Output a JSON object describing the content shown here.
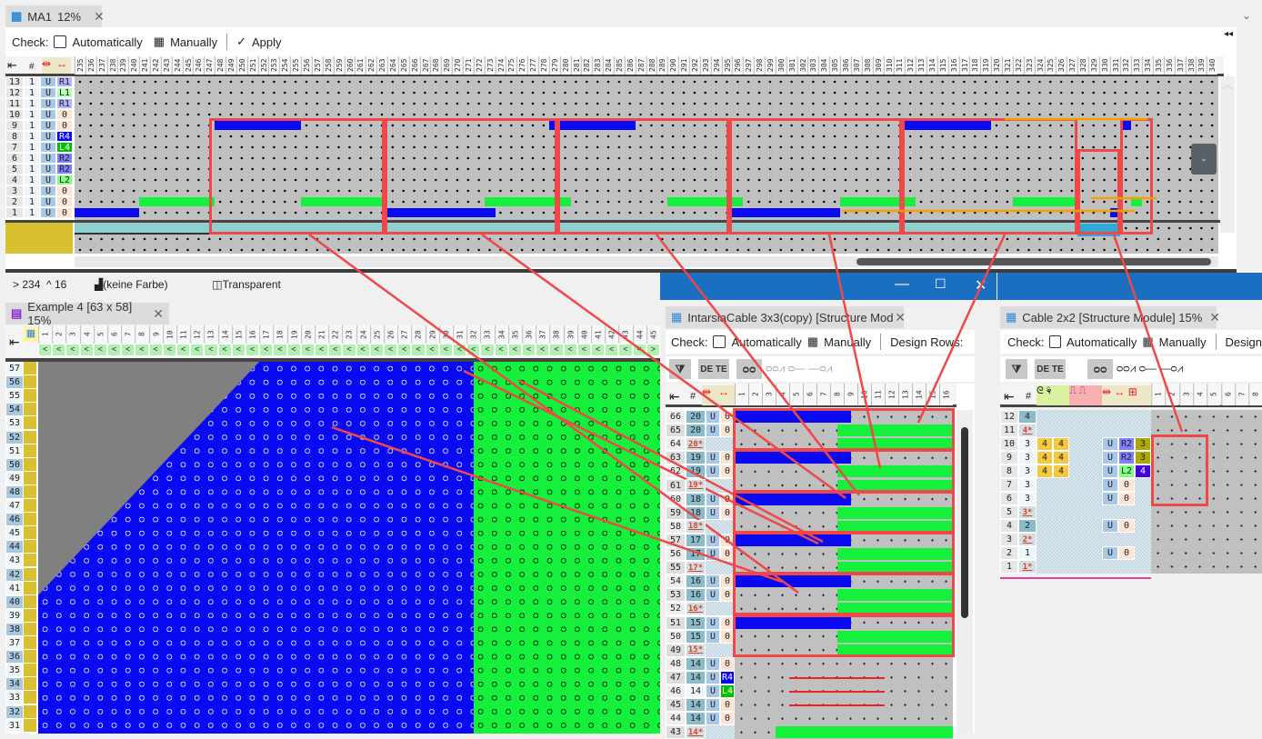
{
  "top": {
    "tab": {
      "title": "MA1",
      "zoom": "12%"
    },
    "toolbar": {
      "check_label": "Check:",
      "auto_label": "Automatically",
      "manual_label": "Manually",
      "apply_label": "Apply"
    },
    "columns": {
      "from": 235,
      "to": 340
    },
    "header_icons": [
      "collapse-left-icon",
      "#",
      "move-icon",
      "shift-icon"
    ],
    "rows": [
      [
        "13",
        "1",
        "U",
        "R1"
      ],
      [
        "12",
        "1",
        "U",
        "L1"
      ],
      [
        "11",
        "1",
        "U",
        "R1"
      ],
      [
        "10",
        "1",
        "U",
        "0"
      ],
      [
        "9",
        "1",
        "U",
        "0"
      ],
      [
        "8",
        "1",
        "U",
        "R4"
      ],
      [
        "7",
        "1",
        "U",
        "L4"
      ],
      [
        "6",
        "1",
        "U",
        "R2"
      ],
      [
        "5",
        "1",
        "U",
        "R2"
      ],
      [
        "4",
        "1",
        "U",
        "L2"
      ],
      [
        "3",
        "1",
        "U",
        "0"
      ],
      [
        "2",
        "1",
        "U",
        "0"
      ],
      [
        "1",
        "1",
        "U",
        "0"
      ]
    ],
    "status": {
      "position": "> 234  ^ 16",
      "color_label": "(keine Farbe)",
      "transparent_label": "Transparent"
    },
    "float_button": "-"
  },
  "example": {
    "tab": "Example 4 [63 x 58] 15%",
    "columns": {
      "from": 1,
      "to": 46
    },
    "direction": "<",
    "rows": {
      "from": 57,
      "to": 31
    }
  },
  "intarsia": {
    "tab": "IntarsiaCable 3x3(copy) [Structure Mod",
    "toolbar": {
      "check_label": "Check:",
      "auto_label": "Automatically",
      "manual_label": "Manually",
      "design_rows": "Design Rows:"
    },
    "buttons": [
      "DE TE"
    ],
    "columns": {
      "from": 1,
      "to": 16
    },
    "rows": [
      [
        "66",
        "20",
        "U",
        "0"
      ],
      [
        "65",
        "20",
        "U",
        "0"
      ],
      [
        "64",
        "20*",
        "",
        ""
      ],
      [
        "63",
        "19",
        "U",
        "0"
      ],
      [
        "62",
        "19",
        "U",
        "0"
      ],
      [
        "61",
        "19*",
        "",
        ""
      ],
      [
        "60",
        "18",
        "U",
        "0"
      ],
      [
        "59",
        "18",
        "U",
        "0"
      ],
      [
        "58",
        "18*",
        "",
        ""
      ],
      [
        "57",
        "17",
        "U",
        "0"
      ],
      [
        "56",
        "17",
        "U",
        "0"
      ],
      [
        "55",
        "17*",
        "",
        ""
      ],
      [
        "54",
        "16",
        "U",
        "0"
      ],
      [
        "53",
        "16",
        "U",
        "0"
      ],
      [
        "52",
        "16*",
        "",
        ""
      ],
      [
        "51",
        "15",
        "U",
        "0"
      ],
      [
        "50",
        "15",
        "U",
        "0"
      ],
      [
        "49",
        "15*",
        "",
        ""
      ],
      [
        "48",
        "14",
        "U",
        "0"
      ],
      [
        "47",
        "14",
        "U",
        "R4"
      ],
      [
        "46",
        "14",
        "U",
        "L4"
      ],
      [
        "45",
        "14",
        "U",
        "0"
      ],
      [
        "44",
        "14",
        "U",
        "0"
      ],
      [
        "43",
        "14*",
        "",
        ""
      ]
    ]
  },
  "cable": {
    "tab": "Cable 2x2 [Structure Module] 15%",
    "toolbar": {
      "check_label": "Check:",
      "auto_label": "Automatically",
      "manual_label": "Manually",
      "design_rows": "Design"
    },
    "buttons": [
      "DE TE"
    ],
    "columns": {
      "from": 1,
      "to": 8
    },
    "rows": [
      [
        "12",
        "4",
        "",
        "",
        "",
        "",
        "",
        ""
      ],
      [
        "11",
        "4*",
        "",
        "",
        "",
        "",
        "",
        ""
      ],
      [
        "10",
        "3",
        "4",
        "4",
        "U",
        "R2",
        "3"
      ],
      [
        "9",
        "3",
        "4",
        "4",
        "U",
        "R2",
        "3"
      ],
      [
        "8",
        "3",
        "4",
        "4",
        "U",
        "L2",
        "4"
      ],
      [
        "7",
        "3",
        "",
        "",
        "U",
        "0",
        ""
      ],
      [
        "6",
        "3",
        "",
        "",
        "U",
        "0",
        ""
      ],
      [
        "5",
        "3*",
        "",
        "",
        "",
        "",
        ""
      ],
      [
        "4",
        "2",
        "",
        "",
        "U",
        "0",
        ""
      ],
      [
        "3",
        "2*",
        "",
        "",
        "",
        "",
        ""
      ],
      [
        "2",
        "1",
        "",
        "",
        "U",
        "0",
        ""
      ],
      [
        "1",
        "1*",
        "",
        "",
        "",
        "",
        ""
      ]
    ]
  },
  "colors": {
    "blue": "#0a0af0",
    "green": "#14f03c",
    "gray": "#c0c0c0",
    "dark_gray": "#808080",
    "annotation_red": "#f04848",
    "annotation_orange": "#f5a000",
    "title_blue": "#1a6fc0"
  }
}
